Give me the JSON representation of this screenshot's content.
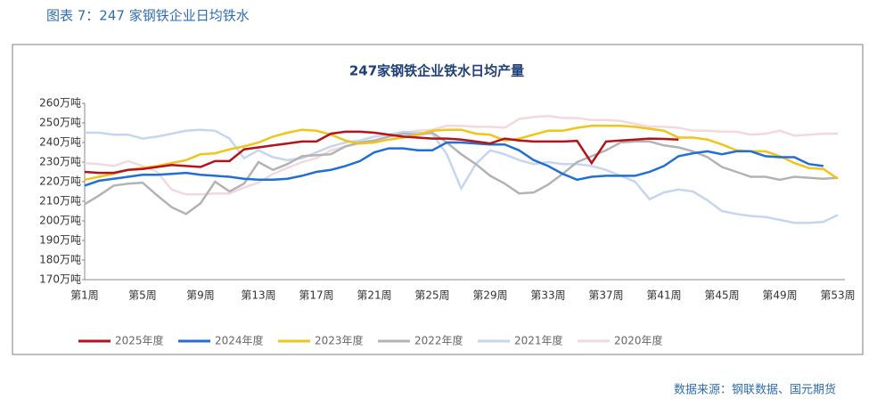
{
  "header": {
    "title": "图表 7：247 家钢铁企业日均铁水"
  },
  "chart_data": {
    "type": "line",
    "title": "247家钢铁企业铁水日均产量",
    "categories": [
      "第1周",
      null,
      null,
      null,
      "第5周",
      null,
      null,
      null,
      "第9周",
      null,
      null,
      null,
      "第13周",
      null,
      null,
      null,
      "第17周",
      null,
      null,
      null,
      "第21周",
      null,
      null,
      null,
      "第25周",
      null,
      null,
      null,
      "第29周",
      null,
      null,
      null,
      "第33周",
      null,
      null,
      null,
      "第37周",
      null,
      null,
      null,
      "第41周",
      null,
      null,
      null,
      "第45周",
      null,
      null,
      null,
      "第49周",
      null,
      null,
      null,
      "第53周"
    ],
    "ylim": [
      170,
      260
    ],
    "yticks": [
      {
        "value": 170,
        "label": "170万吨"
      },
      {
        "value": 180,
        "label": "180万吨"
      },
      {
        "value": 190,
        "label": "190万吨"
      },
      {
        "value": 200,
        "label": "200万吨"
      },
      {
        "value": 210,
        "label": "210万吨"
      },
      {
        "value": 220,
        "label": "220万吨"
      },
      {
        "value": 230,
        "label": "230万吨"
      },
      {
        "value": 240,
        "label": "240万吨"
      },
      {
        "value": 250,
        "label": "250万吨"
      },
      {
        "value": 260,
        "label": "260万吨"
      }
    ],
    "grid": false,
    "series": [
      {
        "name": "2025年度",
        "color": "#b5121b",
        "values": [
          225,
          224.5,
          224.5,
          226,
          226.5,
          227.5,
          228.5,
          228,
          227.5,
          230.5,
          230.5,
          236.5,
          237.5,
          238.5,
          239.5,
          240.5,
          240.5,
          244.5,
          245.5,
          245.5,
          245,
          244,
          243,
          242.5,
          242,
          242,
          241.5,
          240.5,
          239.5,
          242,
          241,
          240.5,
          240.5,
          240.5,
          240.8,
          229.5,
          240.5,
          241,
          241.5,
          242,
          241.8,
          241.5,
          null,
          null,
          null,
          null,
          null,
          null,
          null,
          null,
          null,
          null,
          null
        ]
      },
      {
        "name": "2024年度",
        "color": "#1f6fd6",
        "values": [
          218,
          220.5,
          221.5,
          222.5,
          223.5,
          223.5,
          224,
          224.5,
          223.5,
          223,
          222.5,
          221.5,
          221,
          221,
          221.5,
          223,
          225,
          226,
          228,
          230.5,
          235,
          237,
          237,
          236,
          236,
          240,
          240,
          239.5,
          239,
          239,
          236,
          231,
          228,
          224,
          221,
          222.5,
          223,
          223,
          223,
          225,
          228,
          233,
          234.5,
          235.5,
          234,
          235.5,
          235.5,
          233,
          232.5,
          232.5,
          229,
          228,
          null
        ]
      },
      {
        "name": "2023年度",
        "color": "#f0c419",
        "values": [
          221,
          222.5,
          224,
          226,
          227,
          228,
          229.5,
          231,
          234,
          234.5,
          236.5,
          238,
          240,
          243,
          245,
          246.5,
          246,
          244,
          241,
          239.5,
          240,
          241.5,
          242.5,
          244,
          246,
          246.5,
          246.5,
          244.5,
          244,
          241,
          242,
          244,
          246,
          246,
          247.5,
          248.5,
          248.5,
          248.5,
          248,
          247,
          246,
          242.5,
          242.5,
          241.5,
          239,
          236,
          235.5,
          235.5,
          233,
          229.5,
          227,
          226.5,
          221.5
        ]
      },
      {
        "name": "2022年度",
        "color": "#b3b3b3",
        "values": [
          208.5,
          213,
          218,
          219,
          219.5,
          213,
          207,
          203.5,
          209,
          220,
          215,
          219,
          230,
          226,
          229,
          233,
          233.5,
          234,
          238,
          240,
          241,
          243,
          244.5,
          244,
          245,
          240,
          234,
          229,
          223,
          219,
          214,
          214.5,
          218.5,
          224,
          230,
          233,
          236,
          240,
          240.5,
          240.5,
          238.5,
          237.5,
          235.5,
          232.5,
          227.5,
          225,
          222.5,
          222.5,
          221,
          222.5,
          222,
          221.5,
          222
        ]
      },
      {
        "name": "2021年度",
        "color": "#c5d6f0",
        "values": [
          245,
          245,
          244,
          244,
          242,
          243,
          244.5,
          246,
          246.5,
          246,
          242,
          232,
          236,
          232.5,
          231,
          232,
          235,
          238,
          240,
          241,
          243,
          244,
          245.5,
          245,
          244.5,
          234,
          216.5,
          229,
          236,
          234,
          231,
          229,
          230,
          229,
          229,
          228,
          226,
          223,
          220,
          211,
          214.5,
          216,
          215,
          210.5,
          205,
          203.5,
          202.5,
          202,
          200.5,
          199,
          199,
          199.5,
          203
        ]
      },
      {
        "name": "2020年度",
        "color": "#f2d9dd",
        "values": [
          229.5,
          229,
          228,
          230.5,
          228,
          225,
          216,
          213.5,
          213.5,
          214,
          214,
          217,
          219.5,
          224,
          227,
          230,
          232,
          236,
          238,
          239.5,
          241,
          243,
          245,
          246,
          246.5,
          248.5,
          248.5,
          248,
          248,
          247.5,
          252,
          253,
          253.5,
          252.5,
          252.5,
          251.5,
          251.5,
          251,
          249.5,
          248,
          248,
          247.5,
          246,
          246,
          245.5,
          245.5,
          244,
          244.5,
          246,
          243.5,
          244,
          244.5,
          244.5
        ]
      }
    ]
  },
  "source": "数据来源：钢联数据、国元期货"
}
